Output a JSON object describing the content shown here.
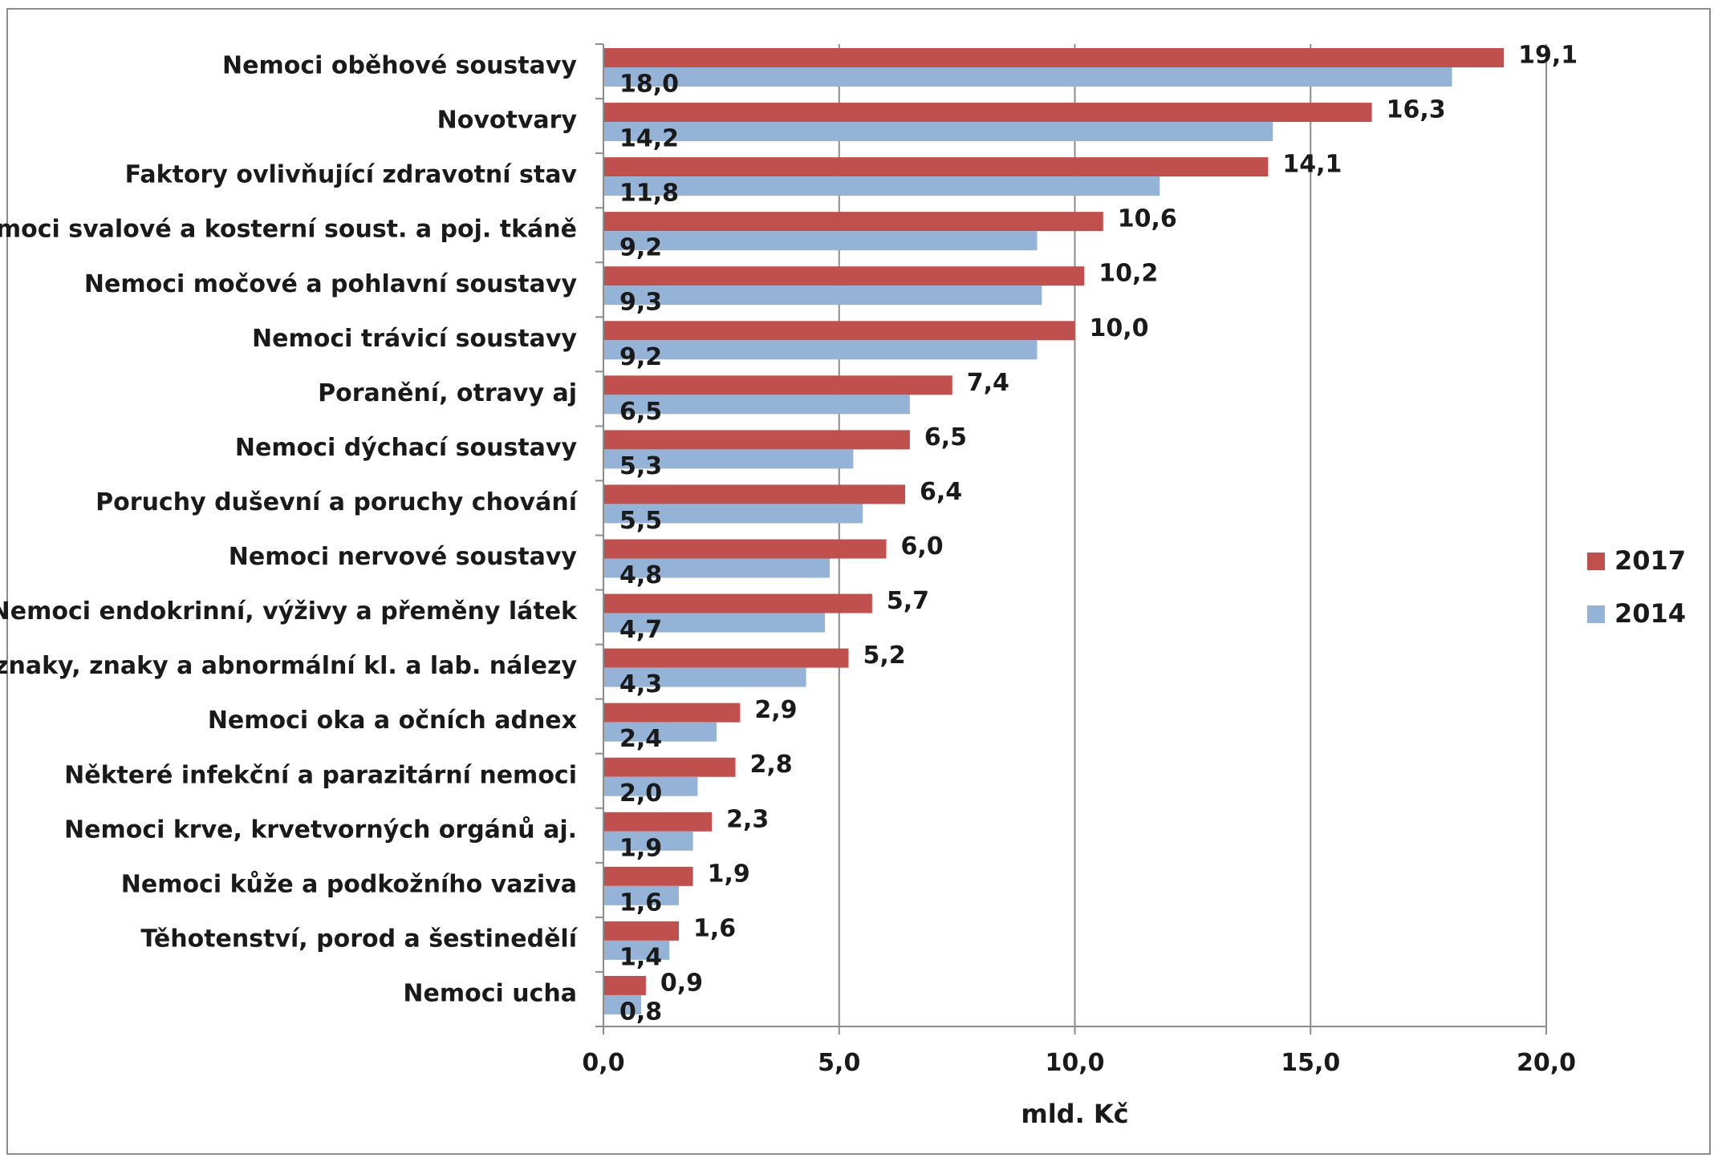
{
  "chart_data": {
    "type": "bar",
    "orientation": "horizontal",
    "categories": [
      "Nemoci oběhové soustavy",
      "Novotvary",
      "Faktory ovlivňující zdravotní stav",
      "Nemoci svalové a kosterní soust. a poj. tkáně",
      "Nemoci močové a pohlavní soustavy",
      "Nemoci trávicí soustavy",
      "Poranění, otravy aj",
      "Nemoci dýchací soustavy",
      "Poruchy duševní a poruchy chování",
      "Nemoci nervové soustavy",
      "Nemoci endokrinní, výživy a přeměny látek",
      "Příznaky, znaky a abnormální kl. a lab. nálezy",
      "Nemoci oka a očních adnex",
      "Některé infekční a parazitární nemoci",
      "Nemoci krve, krvetvorných orgánů aj.",
      "Nemoci kůže a podkožního vaziva",
      "Těhotenství, porod a šestinedělí",
      "Nemoci ucha"
    ],
    "series": [
      {
        "name": "2017",
        "color": "#c0504d",
        "values": [
          19.1,
          16.3,
          14.1,
          10.6,
          10.2,
          10.0,
          7.4,
          6.5,
          6.4,
          6.0,
          5.7,
          5.2,
          2.9,
          2.8,
          2.3,
          1.9,
          1.6,
          0.9
        ],
        "labels": [
          "19,1",
          "16,3",
          "14,1",
          "10,6",
          "10,2",
          "10,0",
          "7,4",
          "6,5",
          "6,4",
          "6,0",
          "5,7",
          "5,2",
          "2,9",
          "2,8",
          "2,3",
          "1,9",
          "1,6",
          "0,9"
        ]
      },
      {
        "name": "2014",
        "color": "#95b3d7",
        "values": [
          18.0,
          14.2,
          11.8,
          9.2,
          9.3,
          9.2,
          6.5,
          5.3,
          5.5,
          4.8,
          4.7,
          4.3,
          2.4,
          2.0,
          1.9,
          1.6,
          1.4,
          0.8
        ],
        "labels": [
          "18,0",
          "14,2",
          "11,8",
          "9,2",
          "9,3",
          "9,2",
          "6,5",
          "5,3",
          "5,5",
          "4,8",
          "4,7",
          "4,3",
          "2,4",
          "2,0",
          "1,9",
          "1,6",
          "1,4",
          "0,8"
        ]
      }
    ],
    "xlabel": "mld. Kč",
    "xlim": [
      0,
      20
    ],
    "xticks": [
      0,
      5,
      10,
      15,
      20
    ],
    "xtick_labels": [
      "0,0",
      "5,0",
      "10,0",
      "15,0",
      "20,0"
    ],
    "grid": "vertical",
    "legend": {
      "placement": "right",
      "entries": [
        "2017",
        "2014"
      ]
    }
  }
}
